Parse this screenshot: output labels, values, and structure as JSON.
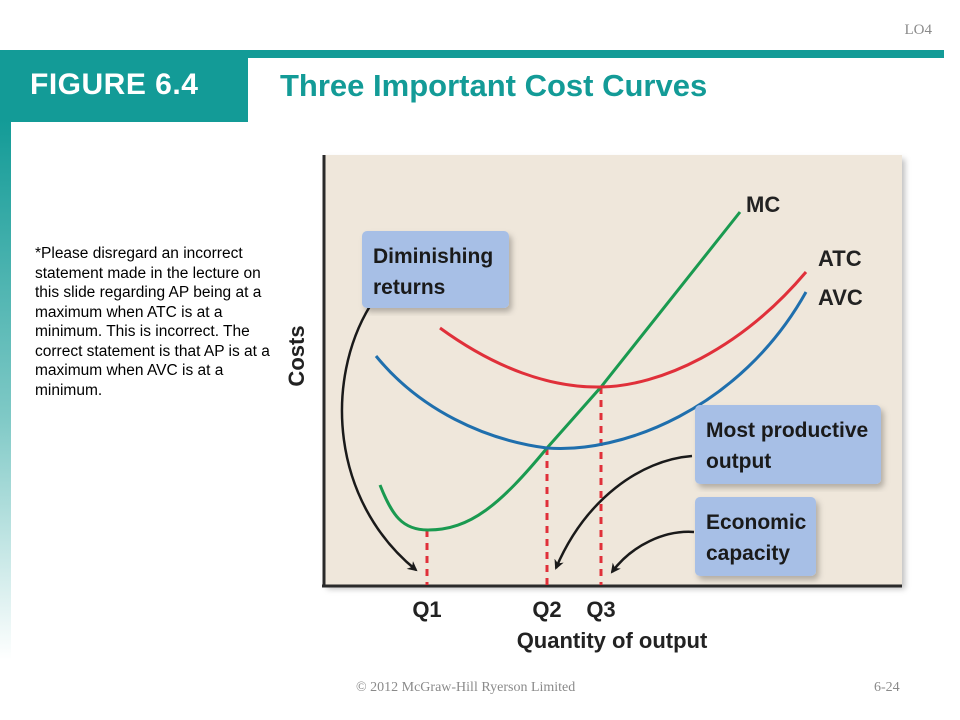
{
  "slide": {
    "lo_tag": "LO4",
    "figure_label": "FIGURE 6.4",
    "title": "Three Important Cost Curves",
    "note": "*Please disregard an incorrect statement made in the lecture on this slide regarding AP being at a maximum when ATC is at a minimum.  This is incorrect.  The correct statement is that AP is at a maximum when AVC is at a minimum.",
    "copyright": "© 2012 McGraw-Hill Ryerson Limited",
    "page": "6-24"
  },
  "chart_data": {
    "type": "line",
    "title": "Three Important Cost Curves",
    "xlabel": "Quantity of output",
    "ylabel": "Costs",
    "x_ticks": [
      "Q1",
      "Q2",
      "Q3"
    ],
    "series": [
      {
        "name": "MC",
        "color": "#1a9a50"
      },
      {
        "name": "ATC",
        "color": "#e0303a"
      },
      {
        "name": "AVC",
        "color": "#1f6fad"
      }
    ],
    "annotations": [
      {
        "text": "Diminishing returns",
        "points_to": "Q1"
      },
      {
        "text": "Most productive output",
        "points_to": "Q2"
      },
      {
        "text": "Economic capacity",
        "points_to": "Q3"
      }
    ],
    "colors": {
      "teal": "#139b97",
      "plot_bg": "#efe7db",
      "callout": "#a7bfe6",
      "guide": "#e0303a"
    }
  }
}
